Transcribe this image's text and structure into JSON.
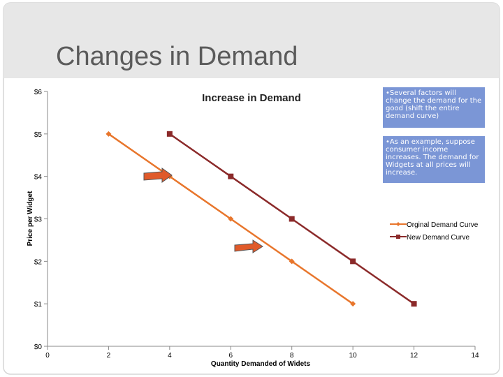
{
  "slide": {
    "title": "Changes in Demand",
    "bullets": [
      "•Several factors will change the demand for the good (shift the entire demand curve)",
      "•As an example, suppose consumer income increases. The demand for Widgets at all prices will increase."
    ]
  },
  "colors": {
    "original": "#e8762c",
    "new": "#8b2a2a",
    "arrow": "#e05a2a",
    "box": "#7b96d6",
    "title": "#5a5a5a"
  },
  "chart_data": {
    "type": "line",
    "title": "Increase in Demand",
    "xlabel": "Quantity Demanded of Widets",
    "ylabel": "Price per Widget",
    "xlim": [
      0,
      14
    ],
    "ylim": [
      0,
      6
    ],
    "xticks": [
      0,
      2,
      4,
      6,
      8,
      10,
      12,
      14
    ],
    "yticks": [
      0,
      1,
      2,
      3,
      4,
      5,
      6
    ],
    "ytick_labels": [
      "$0",
      "$1",
      "$2",
      "$3",
      "$4",
      "$5",
      "$6"
    ],
    "legend_position": "right",
    "series": [
      {
        "name": "Orginal Demand Curve",
        "x": [
          2,
          4,
          6,
          8,
          10
        ],
        "y": [
          5,
          4,
          3,
          2,
          1
        ]
      },
      {
        "name": "New Demand Curve",
        "x": [
          4,
          6,
          8,
          10,
          12
        ],
        "y": [
          5,
          4,
          3,
          2,
          1
        ]
      }
    ]
  }
}
